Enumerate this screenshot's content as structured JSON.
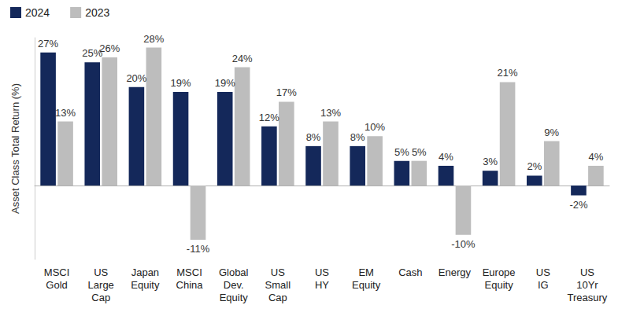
{
  "chart_data": {
    "type": "bar",
    "y_label": "Asset Class Total Return (%)",
    "categories": [
      "MSCI\nGold",
      "US\nLarge\nCap",
      "Japan\nEquity",
      "MSCI\nChina",
      "Global\nDev.\nEquity",
      "US\nSmall\nCap",
      "US\nHY",
      "EM\nEquity",
      "Cash",
      "Energy",
      "Europe\nEquity",
      "US\nIG",
      "US\n10Yr\nTreasury"
    ],
    "series": [
      {
        "name": "2024",
        "color": "#14285a",
        "values": [
          27,
          25,
          20,
          19,
          19,
          12,
          8,
          8,
          5,
          4,
          3,
          2,
          -2
        ],
        "value_labels": [
          "27%",
          "25%",
          "20%",
          "19%",
          "19%",
          "12%",
          "8%",
          "8%",
          "5%",
          "4%",
          "3%",
          "2%",
          "-2%"
        ]
      },
      {
        "name": "2023",
        "color": "#bdbdbd",
        "values": [
          13,
          26,
          28,
          -11,
          24,
          17,
          13,
          10,
          5,
          -10,
          21,
          9,
          4
        ],
        "value_labels": [
          "13%",
          "26%",
          "28%",
          "-11%",
          "24%",
          "17%",
          "13%",
          "10%",
          "5%",
          "-10%",
          "21%",
          "9%",
          "4%"
        ]
      }
    ],
    "ylim": [
      -15,
      30
    ],
    "grid": false,
    "legend": "top-left",
    "data_labels": true,
    "tick_labels": "x"
  }
}
